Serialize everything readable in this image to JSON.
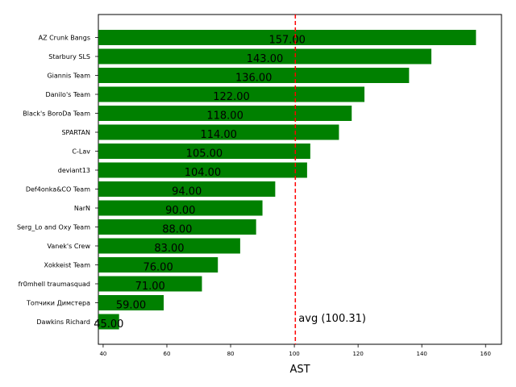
{
  "chart_data": {
    "type": "bar",
    "orientation": "horizontal",
    "categories": [
      "AZ Crunk Bangs",
      "Starbury SLS",
      "Giannis Team",
      "Danilo's Team",
      "Black's BoroDa Team",
      "SPARTAN",
      "C-Lav",
      "deviant13",
      "Def4onka&CO Team",
      "NarN",
      "Serg_Lo and Oxy Team",
      "Vanek's Crew",
      "Xokkeist Team",
      "fr0mhell traumasquad",
      "Топчики Димстера",
      "Dawkins Richard"
    ],
    "values": [
      157,
      143,
      136,
      122,
      118,
      114,
      105,
      104,
      94,
      90,
      88,
      83,
      76,
      71,
      59,
      45
    ],
    "value_labels": [
      "157.00",
      "143.00",
      "136.00",
      "122.00",
      "118.00",
      "114.00",
      "105.00",
      "104.00",
      "94.00",
      "90.00",
      "88.00",
      "83.00",
      "76.00",
      "71.00",
      "59.00",
      "45.00"
    ],
    "xlabel": "AST",
    "xlim": [
      38.5,
      165
    ],
    "x_ticks": [
      40,
      60,
      80,
      100,
      120,
      140,
      160
    ],
    "average": 100.31,
    "average_label": "avg (100.31)",
    "bar_color": "#008000",
    "avg_line_color": "#ff0000",
    "grid": false
  }
}
